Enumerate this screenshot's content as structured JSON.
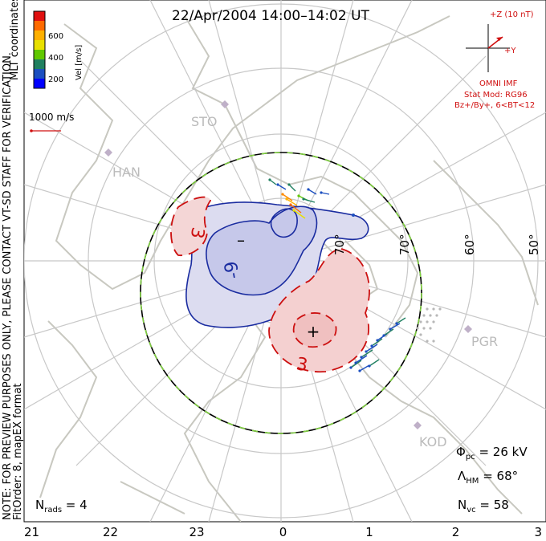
{
  "title": "22/Apr/2004 14:00–14:02 UT",
  "colorbar": {
    "label": "Vel [m/s]",
    "ticks": [
      "600",
      "400",
      "200"
    ],
    "colors": [
      "#e01010",
      "#ff6a00",
      "#ffb000",
      "#e8e000",
      "#60c800",
      "#208060",
      "#1c4fc0",
      "#0000ff"
    ]
  },
  "coordinates_label": "MLT coordinates",
  "vector_scale": "1000 m/s",
  "preview_note_1": "NOTE: FOR PREVIEW PURPOSES ONLY, PLEASE CONTACT VT-SD STAFF FOR VERIFICATION.",
  "preview_note_2": "FitOrder: 8, mapEX format",
  "imf": {
    "z_label": "+Z (10 nT)",
    "y_label": "+Y",
    "source": "OMNI IMF",
    "model": "Stat Mod: RG96",
    "condition": "Bz+/By+, 6<BT<12"
  },
  "stations": [
    "STO",
    "HAN",
    "PGR",
    "KOD"
  ],
  "lat_labels": [
    "70°",
    "70°",
    "60°",
    "50°"
  ],
  "stats": {
    "phi_sym": "Φ",
    "phi_sub": "pc",
    "phi_val": " = 26 kV",
    "lam_sym": "Λ",
    "lam_sub": "HM",
    "lam_val": " = 68°",
    "nvc_sym": "N",
    "nvc_sub": "vc",
    "nvc_val": " = 58",
    "nrads_sym": "N",
    "nrads_sub": "rads",
    "nrads_val": " = 4"
  },
  "contours": {
    "minus_label": "-9",
    "plus_label": "3",
    "minus_label_2": "3"
  },
  "chart_data": {
    "type": "polar map",
    "mlt_ticks": [
      "21",
      "22",
      "23",
      "0",
      "1",
      "2",
      "3"
    ],
    "lat_circles_deg": [
      80,
      70,
      60,
      50
    ],
    "potential_cells": [
      {
        "sign": "negative",
        "symbol": "–",
        "contour_label": "-9"
      },
      {
        "sign": "positive",
        "symbol": "+",
        "contour_label": "3"
      },
      {
        "sign": "positive",
        "contour_label": "3"
      }
    ],
    "cross_polar_cap_potential_kV": 26,
    "heppner_maynard_boundary_deg": 68,
    "n_vectors": 58,
    "n_radars": 4,
    "velocity_colorbar_range": [
      0,
      700
    ]
  }
}
